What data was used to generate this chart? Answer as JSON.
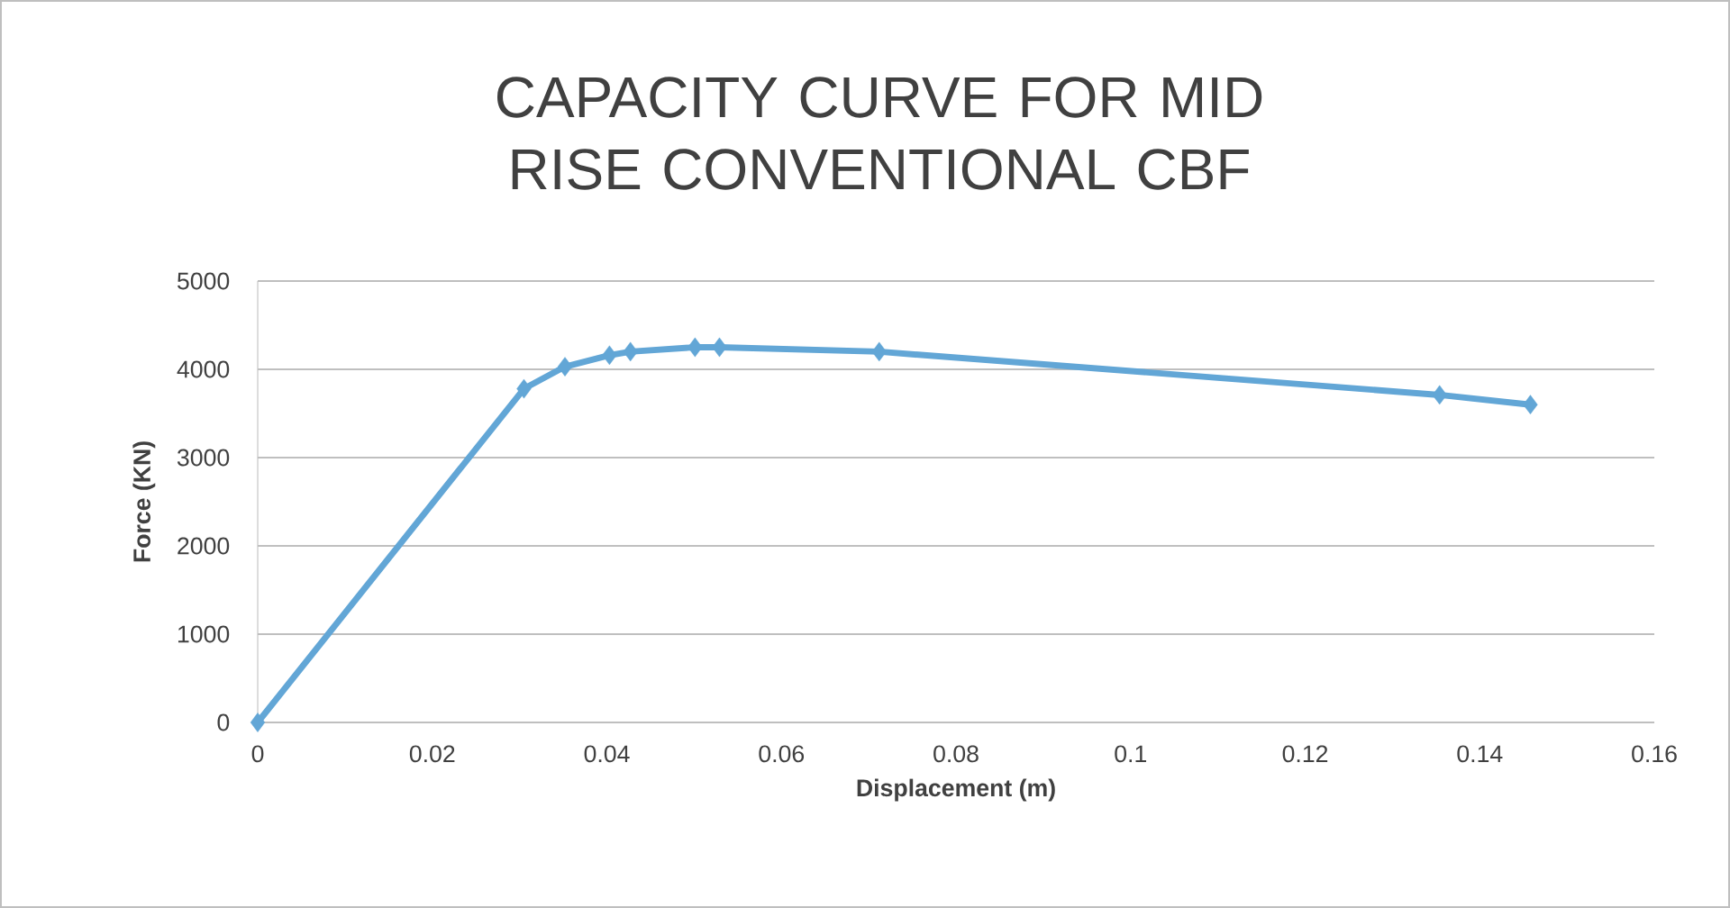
{
  "chart_data": {
    "type": "line",
    "title": "CAPACITY CURVE FOR MID RISE CONVENTIONAL CBF",
    "xlabel": "Displacement  (m)",
    "ylabel": "Force (KN)",
    "x": [
      0,
      0.0305,
      0.0352,
      0.0403,
      0.0427,
      0.0501,
      0.0529,
      0.0712,
      0.1354,
      0.1458
    ],
    "series": [
      {
        "color": "#62a6d6",
        "values": [
          0,
          3780,
          4030,
          4160,
          4200,
          4250,
          4250,
          4200,
          3710,
          3600
        ]
      }
    ],
    "xlim": [
      0,
      0.16
    ],
    "xticks": [
      0,
      0.02,
      0.04,
      0.06,
      0.08,
      0.1,
      0.12,
      0.14,
      0.16
    ],
    "ylim": [
      0,
      5000
    ],
    "yticks": [
      0,
      1000,
      2000,
      3000,
      4000,
      5000
    ],
    "grid": "y",
    "marker": "diamond",
    "line_style": "solid"
  }
}
